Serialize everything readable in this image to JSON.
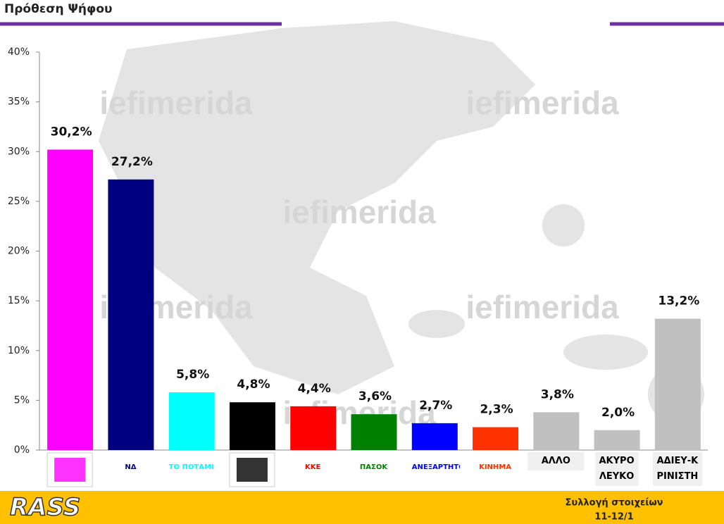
{
  "chart_data": {
    "type": "bar",
    "title": "Πρόθεση Ψήφου",
    "categories": [
      null,
      "ΝΔ",
      "ΤΟ ΠΟΤΑΜΙ",
      null,
      "ΚΚΕ",
      "ΠΑΣΟΚ",
      "ΑΝΕΞΑΡΤΗΤΟΙ",
      "ΚΙΝΗΜΑ",
      "ΑΛΛΟ",
      "ΑΚΥΡΟ ΛΕΥΚΟ",
      "ΑΔΙΕΥ-ΚΡΙΝΙΣΤΗ"
    ],
    "values": [
      30.2,
      27.2,
      5.8,
      4.8,
      4.4,
      3.6,
      2.7,
      2.3,
      3.8,
      2.0,
      13.2
    ],
    "value_labels": [
      "30,2%",
      "27,2%",
      "5,8%",
      "4,8%",
      "4,4%",
      "3,6%",
      "2,7%",
      "2,3%",
      "3,8%",
      "2,0%",
      "13,2%"
    ],
    "colors": [
      "#ff00ff",
      "#000080",
      "#00ffff",
      "#000000",
      "#ff0000",
      "#008000",
      "#0000ff",
      "#ff3300",
      "#c0c0c0",
      "#c0c0c0",
      "#c0c0c0"
    ],
    "ylim": [
      0,
      40
    ],
    "yticks": [
      {
        "value": 0,
        "label": "0%"
      },
      {
        "value": 5,
        "label": "5%"
      },
      {
        "value": 10,
        "label": "10%"
      },
      {
        "value": 15,
        "label": "15%"
      },
      {
        "value": 20,
        "label": "20%"
      },
      {
        "value": 25,
        "label": "25%"
      },
      {
        "value": 30,
        "label": "30%"
      },
      {
        "value": 35,
        "label": "35%"
      },
      {
        "value": 40,
        "label": "40%"
      }
    ],
    "grid": false,
    "watermark": "iefimerida",
    "footer": {
      "brand": "RASS",
      "note": "Συλλογή στοιχείων",
      "date": "11-12/1"
    }
  }
}
